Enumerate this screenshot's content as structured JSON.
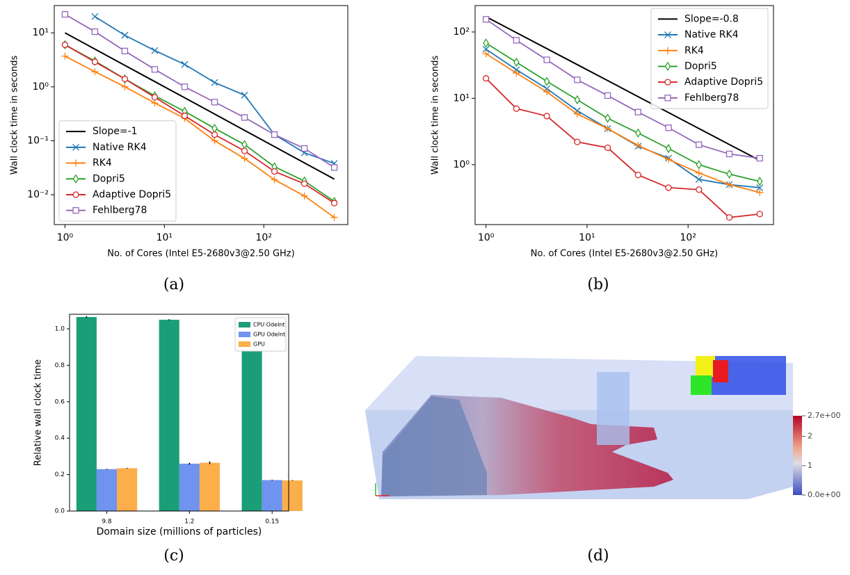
{
  "chart_data": [
    {
      "type": "line",
      "caption": "(a)",
      "xlabel": "No. of Cores (Intel E5-2680v3@2.50 GHz)",
      "ylabel": "Wall clock time in seconds",
      "xscale": "log",
      "yscale": "log",
      "x": [
        1,
        2,
        4,
        8,
        16,
        32,
        64,
        128,
        256,
        512
      ],
      "xlim": [
        0.78,
        700
      ],
      "ylim": [
        0.0028,
        32
      ],
      "xticks": [
        {
          "value": 1,
          "label": "10⁰"
        },
        {
          "value": 10,
          "label": "10¹"
        },
        {
          "value": 100,
          "label": "10²"
        }
      ],
      "yticks": [
        {
          "value": 0.01,
          "label": "10⁻²"
        },
        {
          "value": 0.1,
          "label": "10⁻¹"
        },
        {
          "value": 1,
          "label": "10⁰"
        },
        {
          "value": 10,
          "label": "10¹"
        }
      ],
      "legend": "lower left",
      "series": [
        {
          "name": "Slope=-1",
          "color": "#000000",
          "marker": "none",
          "values": [
            10,
            5,
            2.5,
            1.25,
            0.625,
            0.3125,
            0.156,
            0.078,
            0.039,
            0.0195
          ]
        },
        {
          "name": "Native RK4",
          "color": "#1f77b4",
          "marker": "x",
          "values": [
            null,
            20,
            9,
            4.7,
            2.6,
            1.2,
            0.7,
            0.13,
            0.06,
            0.038
          ]
        },
        {
          "name": "RK4",
          "color": "#ff7f0e",
          "marker": "+",
          "values": [
            3.7,
            1.9,
            1.0,
            0.5,
            0.26,
            0.1,
            0.047,
            0.019,
            0.0095,
            0.0038
          ]
        },
        {
          "name": "Dopri5",
          "color": "#2ca02c",
          "marker": "thin_diamond",
          "values": [
            6,
            3,
            1.4,
            0.68,
            0.35,
            0.17,
            0.085,
            0.033,
            0.018,
            0.0075
          ]
        },
        {
          "name": "Adaptive Dopri5",
          "color": "#d62728",
          "marker": "circle",
          "values": [
            6,
            2.9,
            1.4,
            0.64,
            0.29,
            0.13,
            0.065,
            0.027,
            0.016,
            0.007
          ]
        },
        {
          "name": "Fehlberg78",
          "color": "#9467bd",
          "marker": "square",
          "values": [
            22,
            10.5,
            4.6,
            2.1,
            1.0,
            0.52,
            0.27,
            0.13,
            0.072,
            0.032
          ]
        }
      ]
    },
    {
      "type": "line",
      "caption": "(b)",
      "xlabel": "No. of Cores (Intel E5-2680v3@2.50 GHz)",
      "ylabel": "Wall clock time in seconds",
      "xscale": "log",
      "yscale": "log",
      "x": [
        1,
        2,
        4,
        8,
        16,
        32,
        64,
        128,
        256,
        512
      ],
      "xlim": [
        0.78,
        700
      ],
      "ylim": [
        0.125,
        250
      ],
      "xticks": [
        {
          "value": 1,
          "label": "10⁰"
        },
        {
          "value": 10,
          "label": "10¹"
        },
        {
          "value": 100,
          "label": "10²"
        }
      ],
      "yticks": [
        {
          "value": 1,
          "label": "10⁰"
        },
        {
          "value": 10,
          "label": "10¹"
        },
        {
          "value": 100,
          "label": "10²"
        }
      ],
      "legend": "upper right",
      "series": [
        {
          "name": "Slope=-0.8",
          "color": "#000000",
          "marker": "none",
          "values": [
            170,
            97.6,
            56.1,
            32.2,
            18.5,
            10.6,
            6.1,
            3.5,
            2.01,
            1.16
          ]
        },
        {
          "name": "Native RK4",
          "color": "#1f77b4",
          "marker": "x",
          "values": [
            55,
            27,
            14,
            6.5,
            3.5,
            1.9,
            1.25,
            0.6,
            0.5,
            0.45
          ]
        },
        {
          "name": "RK4",
          "color": "#ff7f0e",
          "marker": "+",
          "values": [
            47,
            24,
            12.5,
            5.8,
            3.5,
            1.95,
            1.2,
            0.75,
            0.5,
            0.38
          ]
        },
        {
          "name": "Dopri5",
          "color": "#2ca02c",
          "marker": "thin_diamond",
          "values": [
            68,
            35,
            18,
            9.5,
            5,
            3,
            1.75,
            1.0,
            0.72,
            0.56
          ]
        },
        {
          "name": "Adaptive Dopri5",
          "color": "#d62728",
          "marker": "circle",
          "values": [
            20,
            7,
            5.4,
            2.2,
            1.8,
            0.7,
            0.45,
            0.42,
            0.16,
            0.18
          ]
        },
        {
          "name": "Fehlberg78",
          "color": "#9467bd",
          "marker": "square",
          "values": [
            155,
            75,
            38,
            19,
            11,
            6.2,
            3.6,
            2,
            1.45,
            1.25
          ]
        }
      ]
    },
    {
      "type": "bar",
      "caption": "(c)",
      "xlabel": "Domain size (millions of particles)",
      "ylabel": "Relative wall clock time",
      "categories": [
        "9.8",
        "1.2",
        "0.15"
      ],
      "ylim": [
        0,
        1.08
      ],
      "yticks": [
        {
          "value": 0,
          "label": "0.0"
        },
        {
          "value": 0.2,
          "label": "0.2"
        },
        {
          "value": 0.4,
          "label": "0.4"
        },
        {
          "value": 0.6,
          "label": "0.6"
        },
        {
          "value": 0.8,
          "label": "0.8"
        },
        {
          "value": 1.0,
          "label": "1.0"
        }
      ],
      "legend": "upper right",
      "series": [
        {
          "name": "CPU OdeInt",
          "color": "#1b9e77",
          "values": [
            1.065,
            1.05,
            1.005
          ],
          "errors": [
            0.005,
            0.003,
            0.002
          ]
        },
        {
          "name": "GPU OdeInt",
          "color": "#6f93ee",
          "values": [
            0.23,
            0.26,
            0.17
          ],
          "errors": [
            0.002,
            0.005,
            0.002
          ]
        },
        {
          "name": "GPU",
          "color": "#fbae4a",
          "values": [
            0.235,
            0.265,
            0.168
          ],
          "errors": [
            0.002,
            0.007,
            0.002
          ]
        }
      ]
    },
    {
      "type": "colorbar",
      "caption": "(d)",
      "clim": [
        0,
        2.7
      ],
      "ticks": [
        {
          "value": 2.7,
          "label": "2.7e+00"
        },
        2,
        1,
        {
          "value": 0,
          "label": "0.0e+00"
        }
      ]
    }
  ]
}
